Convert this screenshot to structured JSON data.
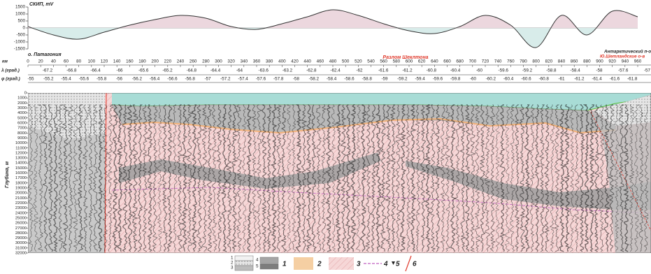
{
  "chart_data": {
    "type": "line",
    "y_label": "СКИП, mV",
    "x": [
      0,
      40,
      80,
      120,
      160,
      200,
      240,
      280,
      320,
      360,
      400,
      440,
      480,
      520,
      560,
      600,
      640,
      680,
      720,
      760,
      800,
      840,
      880,
      920,
      960
    ],
    "values": [
      100,
      -500,
      -800,
      -300,
      200,
      600,
      900,
      700,
      100,
      -100,
      300,
      800,
      1300,
      900,
      300,
      -200,
      -400,
      100,
      900,
      200,
      -1400,
      900,
      -500,
      1200,
      800
    ],
    "xlim": [
      0,
      960
    ],
    "ylim": [
      -1500,
      1500
    ],
    "yticks": [
      -1500,
      -1000,
      -500,
      0,
      500,
      1000,
      1500
    ],
    "color": "#333333"
  },
  "section": {
    "km_label": "км",
    "km_ticks": [
      0,
      20,
      40,
      60,
      80,
      100,
      120,
      140,
      160,
      180,
      200,
      220,
      240,
      260,
      280,
      300,
      320,
      340,
      360,
      380,
      400,
      420,
      440,
      460,
      480,
      500,
      520,
      540,
      560,
      580,
      600,
      620,
      640,
      660,
      680,
      700,
      720,
      740,
      760,
      780,
      800,
      820,
      840,
      860,
      880,
      900,
      920,
      940,
      960
    ],
    "lambda_label": "λ (град.)",
    "lambda": [
      -67.2,
      -66.8,
      -66.4,
      -66,
      -65.6,
      -65.2,
      -64.8,
      -64.4,
      -64,
      -63.6,
      -63.2,
      -62.8,
      -62.4,
      -62,
      -61.6,
      -61.2,
      -60.8,
      -60.4,
      -60,
      -59.6,
      -59.2,
      -58.8,
      -58.4,
      -58,
      -57.6,
      -57
    ],
    "phi_label": "φ (град.)",
    "phi": [
      -55,
      -55.2,
      -55.4,
      -55.6,
      -55.8,
      -56,
      -56.2,
      -56.4,
      -56.6,
      -56.8,
      -57,
      -57.2,
      -57.4,
      -57.6,
      -57.8,
      -58,
      -58.2,
      -58.4,
      -58.6,
      -58.8,
      -59,
      -59.2,
      -59.4,
      -59.6,
      -59.8,
      -60,
      -60.2,
      -60.4,
      -60.6,
      -60.8,
      -61,
      -61.2,
      -61.4,
      -61.6,
      -61.8
    ],
    "depth_label": "Глубина, м",
    "depth_ticks": [
      0,
      1000,
      2000,
      3000,
      4000,
      5000,
      6000,
      7000,
      8000,
      9000,
      10000,
      11000,
      12000,
      13000,
      14000,
      15000,
      16000,
      17000,
      18000,
      19000,
      20000,
      21000,
      22000,
      23000,
      24000,
      25000,
      26000,
      27000,
      28000,
      29000,
      30000,
      31000,
      32000
    ],
    "depth_lim": [
      0,
      32000
    ],
    "labels": {
      "patagonia": "о. Патагония",
      "fault": "Разлом Шеклтона",
      "peninsula": "Антарктический п-о",
      "islands": "Ю.Шетландские о-в"
    }
  },
  "legend": {
    "sub1": [
      "1",
      "2",
      "3"
    ],
    "sub2": [
      "4",
      "5"
    ],
    "items": [
      "1",
      "2",
      "3",
      "4",
      "5",
      "6"
    ]
  }
}
